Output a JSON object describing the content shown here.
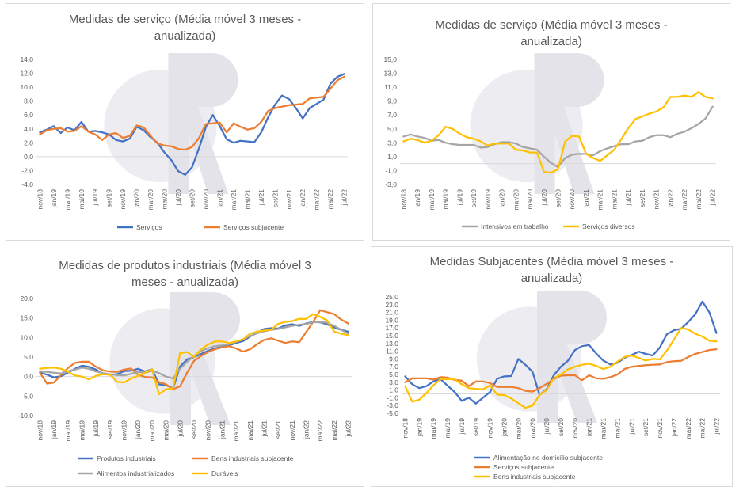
{
  "chart_data": [
    {
      "type": "line",
      "title": "Medidas de serviço (Média móvel 3 meses - anualizada)",
      "title_lines": [
        "Medidas de serviço (Média móvel 3 meses -",
        "anualizada)"
      ],
      "categories": [
        "nov/18",
        "dez/18",
        "jan/19",
        "fev/19",
        "mar/19",
        "abr/19",
        "mai/19",
        "jun/19",
        "jul/19",
        "ago/19",
        "set/19",
        "out/19",
        "nov/19",
        "dez/19",
        "jan/20",
        "fev/20",
        "mar/20",
        "abr/20",
        "mai/20",
        "jun/20",
        "jul/20",
        "ago/20",
        "set/20",
        "out/20",
        "nov/20",
        "dez/20",
        "jan/21",
        "fev/21",
        "mar/21",
        "abr/21",
        "mai/21",
        "jun/21",
        "jul/21",
        "ago/21",
        "set/21",
        "out/21",
        "nov/21",
        "dez/21",
        "jan/22",
        "fev/22",
        "mar/22",
        "abr/22",
        "mai/22",
        "jun/22",
        "jul/22"
      ],
      "tick_labels": [
        "nov/18",
        "jan/19",
        "mar/19",
        "mai/19",
        "jul/19",
        "set/19",
        "nov/19",
        "jan/20",
        "mar/20",
        "mai/20",
        "jul/20",
        "set/20",
        "nov/20",
        "jan/21",
        "mar/21",
        "mai/21",
        "jul/21",
        "set/21",
        "nov/21",
        "jan/22",
        "mar/22",
        "mai/22",
        "jul/22"
      ],
      "ylim": [
        -4,
        14
      ],
      "yticks": [
        "-4,0",
        "-2,0",
        "0,0",
        "2,0",
        "4,0",
        "6,0",
        "8,0",
        "10,0",
        "12,0",
        "14,0"
      ],
      "series": [
        {
          "name": "Serviços",
          "color": "#4472c4",
          "values": [
            3.5,
            3.9,
            4.4,
            3.4,
            4.2,
            3.8,
            5.0,
            3.6,
            3.7,
            3.5,
            3.2,
            2.4,
            2.2,
            2.6,
            4.3,
            3.8,
            2.8,
            2.0,
            0.6,
            -0.5,
            -2.1,
            -2.6,
            -1.5,
            1.2,
            4.3,
            6.0,
            4.4,
            2.5,
            2.0,
            2.3,
            2.2,
            2.1,
            3.5,
            5.7,
            7.5,
            8.8,
            8.3,
            7.0,
            5.5,
            7.0,
            7.6,
            8.2,
            10.5,
            11.5,
            11.9
          ]
        },
        {
          "name": "Serviços subjacente",
          "color": "#ed7d31",
          "values": [
            3.2,
            3.8,
            4.0,
            4.1,
            3.6,
            3.7,
            4.4,
            3.6,
            3.2,
            2.4,
            3.2,
            3.4,
            2.7,
            3.0,
            4.5,
            4.2,
            3.0,
            1.9,
            1.6,
            1.5,
            1.1,
            1.0,
            1.4,
            2.7,
            4.7,
            4.8,
            4.9,
            3.5,
            4.8,
            4.3,
            3.9,
            4.1,
            5.0,
            6.6,
            7.0,
            7.2,
            7.4,
            7.5,
            7.6,
            8.4,
            8.5,
            8.6,
            9.8,
            11.0,
            11.5
          ]
        }
      ],
      "legend_position": "bottom"
    },
    {
      "type": "line",
      "title": "Medidas de serviço (Média móvel 3 meses - anualizada)",
      "title_lines": [
        "Medidas de serviço (Média móvel 3 meses -",
        "anualizada)"
      ],
      "ylim": [
        -3,
        15
      ],
      "yticks": [
        "-3,0",
        "-1,0",
        "1,0",
        "3,0",
        "5,0",
        "7,0",
        "9,0",
        "11,0",
        "13,0",
        "15,0"
      ],
      "series": [
        {
          "name": "Intensivos em trabalho",
          "color": "#a5a5a5",
          "values": [
            3.9,
            4.2,
            3.9,
            3.7,
            3.3,
            3.4,
            3.0,
            2.8,
            2.7,
            2.7,
            2.7,
            2.3,
            2.4,
            2.8,
            3.1,
            3.1,
            2.9,
            2.4,
            2.2,
            2.0,
            1.0,
            0.1,
            -0.5,
            0.8,
            1.3,
            1.4,
            1.4,
            1.2,
            1.8,
            2.2,
            2.5,
            2.8,
            2.8,
            3.2,
            3.3,
            3.8,
            4.1,
            4.1,
            3.8,
            4.3,
            4.6,
            5.1,
            5.7,
            6.5,
            8.2
          ]
        },
        {
          "name": "Serviços diversos",
          "color": "#ffc000",
          "values": [
            3.2,
            3.6,
            3.4,
            3.0,
            3.3,
            4.1,
            5.3,
            5.0,
            4.3,
            3.8,
            3.6,
            3.2,
            2.6,
            2.9,
            2.9,
            2.9,
            2.0,
            1.9,
            1.6,
            1.6,
            -1.2,
            -1.3,
            -0.8,
            3.2,
            4.0,
            3.9,
            1.4,
            0.8,
            0.4,
            1.2,
            2.0,
            3.5,
            5.1,
            6.4,
            6.8,
            7.2,
            7.5,
            8.1,
            9.6,
            9.6,
            9.8,
            9.6,
            10.3,
            9.6,
            9.4
          ]
        }
      ],
      "legend_position": "bottom"
    },
    {
      "type": "line",
      "title": "Medidas de produtos industriais (Média móvel 3 meses - anualizada)",
      "title_lines": [
        "Medidas de produtos industriais (Média móvel 3",
        "meses - anualizada)"
      ],
      "ylim": [
        -10,
        20
      ],
      "yticks": [
        "-10,0",
        "-5,0",
        "0,0",
        "5,0",
        "10,0",
        "15,0",
        "20,0"
      ],
      "series": [
        {
          "name": "Produtos industriais",
          "color": "#4472c4",
          "values": [
            1.0,
            0.5,
            -0.2,
            0.1,
            1.0,
            2.0,
            2.8,
            2.5,
            1.8,
            0.7,
            0.5,
            0.6,
            1.4,
            1.5,
            2.0,
            1.3,
            1.9,
            -2.0,
            -2.2,
            -3.0,
            2.6,
            4.4,
            5.0,
            5.8,
            6.6,
            7.2,
            7.6,
            8.0,
            8.6,
            9.1,
            10.3,
            11.2,
            12.2,
            12.4,
            12.3,
            13.1,
            13.4,
            13.0,
            13.6,
            14.0,
            13.9,
            13.4,
            12.6,
            12.0,
            11.5
          ]
        },
        {
          "name": "Bens industriais subjacente",
          "color": "#ed7d31",
          "values": [
            1.0,
            -1.8,
            -1.5,
            0.4,
            2.2,
            3.5,
            3.8,
            3.8,
            2.5,
            1.6,
            1.3,
            1.2,
            1.8,
            2.1,
            0.5,
            -0.1,
            -0.2,
            -1.4,
            -2.0,
            -3.2,
            -2.5,
            1.0,
            4.0,
            5.3,
            6.3,
            7.0,
            7.5,
            7.8,
            7.2,
            6.4,
            7.0,
            8.3,
            9.4,
            9.8,
            9.2,
            8.6,
            9.0,
            8.8,
            11.4,
            14.0,
            17.0,
            16.5,
            16.0,
            14.6,
            13.6
          ]
        },
        {
          "name": "Alimentos industrializados",
          "color": "#a5a5a5",
          "values": [
            1.4,
            1.2,
            1.0,
            0.8,
            1.4,
            1.8,
            2.3,
            2.0,
            1.3,
            0.9,
            0.6,
            0.4,
            0.3,
            0.7,
            1.2,
            1.0,
            1.5,
            0.9,
            0.0,
            -0.5,
            2.0,
            3.8,
            5.3,
            6.5,
            7.3,
            7.8,
            8.0,
            8.3,
            8.9,
            9.6,
            10.4,
            11.1,
            11.6,
            12.0,
            12.2,
            12.6,
            13.0,
            13.3,
            13.5,
            13.9,
            14.0,
            13.8,
            13.0,
            12.0,
            11.0
          ]
        },
        {
          "name": "Duráveis",
          "color": "#ffc000",
          "values": [
            2.0,
            2.2,
            2.3,
            2.0,
            1.2,
            0.3,
            0.0,
            -0.7,
            0.2,
            0.6,
            0.5,
            -1.3,
            -1.5,
            -0.5,
            0.2,
            1.0,
            1.9,
            -4.5,
            -3.2,
            -3.0,
            6.0,
            6.3,
            5.0,
            7.0,
            8.2,
            9.0,
            9.0,
            8.6,
            9.0,
            9.5,
            11.0,
            11.5,
            11.8,
            12.0,
            13.5,
            14.0,
            14.2,
            14.8,
            14.8,
            16.0,
            15.3,
            14.4,
            11.5,
            11.0,
            10.6
          ]
        }
      ],
      "legend_position": "bottom"
    },
    {
      "type": "line",
      "title": "Medidas Subjacentes (Média móvel 3 meses - anualizada)",
      "title_lines": [
        "Medidas Subjacentes (Média móvel 3 meses -",
        "anualizada)"
      ],
      "ylim": [
        -5,
        25
      ],
      "yticks": [
        "-5,0",
        "-3,0",
        "-1,0",
        "1,0",
        "3,0",
        "5,0",
        "7,0",
        "9,0",
        "11,0",
        "13,0",
        "15,0",
        "17,0",
        "19,0",
        "21,0",
        "23,0",
        "25,0"
      ],
      "series": [
        {
          "name": "Alimentação no domicílio subjacente",
          "color": "#4472c4",
          "values": [
            4.5,
            2.5,
            1.5,
            2.0,
            3.2,
            3.8,
            2.1,
            0.5,
            -1.8,
            -1.0,
            -2.5,
            -1.0,
            0.5,
            3.9,
            4.5,
            4.6,
            9.0,
            7.5,
            5.7,
            -0.3,
            1.2,
            4.8,
            7.0,
            8.5,
            11.3,
            12.3,
            12.6,
            10.4,
            8.6,
            7.6,
            8.0,
            9.3,
            10.0,
            10.9,
            10.3,
            9.9,
            12.0,
            15.4,
            16.4,
            16.8,
            18.5,
            20.5,
            23.8,
            21.0,
            15.7
          ]
        },
        {
          "name": "Serviços subjacente",
          "color": "#ed7d31",
          "values": [
            3.0,
            4.0,
            4.0,
            4.0,
            3.7,
            4.3,
            4.2,
            3.6,
            3.4,
            2.0,
            3.2,
            3.2,
            2.8,
            1.8,
            1.8,
            1.8,
            1.5,
            0.8,
            0.6,
            1.5,
            2.6,
            3.8,
            4.7,
            4.8,
            4.8,
            3.5,
            4.8,
            4.0,
            3.9,
            4.3,
            5.0,
            6.4,
            7.0,
            7.2,
            7.4,
            7.5,
            7.6,
            8.2,
            8.4,
            8.5,
            9.5,
            10.3,
            10.8,
            11.3,
            11.5
          ]
        },
        {
          "name": "Bens industriais subjacente",
          "color": "#ffc000",
          "values": [
            2.0,
            -2.0,
            -1.5,
            0.2,
            2.2,
            3.8,
            3.8,
            3.8,
            2.5,
            1.5,
            1.3,
            1.2,
            2.2,
            -0.2,
            -0.3,
            -1.2,
            -2.4,
            -3.6,
            -3.0,
            -0.3,
            1.0,
            4.0,
            5.0,
            6.3,
            7.0,
            7.5,
            7.8,
            7.2,
            6.4,
            7.0,
            8.3,
            9.5,
            9.9,
            9.3,
            8.6,
            9.0,
            8.9,
            11.2,
            14.0,
            17.0,
            16.6,
            15.5,
            14.8,
            13.7,
            13.5
          ]
        }
      ],
      "legend_position": "bottom"
    }
  ]
}
